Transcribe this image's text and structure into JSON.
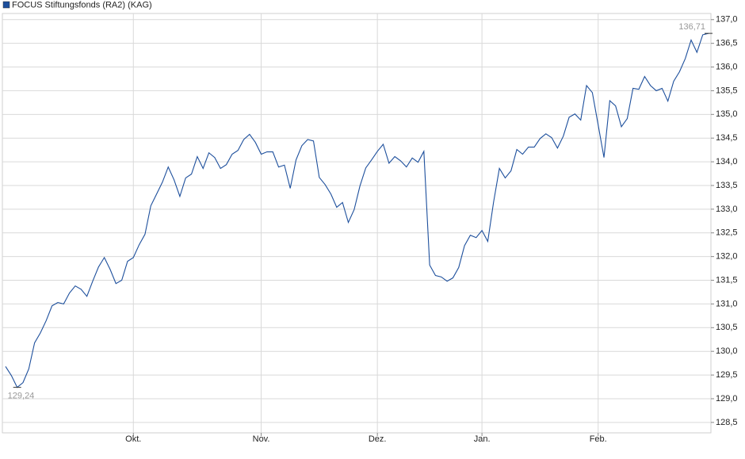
{
  "chart_data": {
    "type": "line",
    "series": [
      {
        "name": "FOCUS Stiftungsfonds (RA2) (KAG)",
        "color": "#1d4f9c",
        "values": [
          129.68,
          129.49,
          129.24,
          129.34,
          129.63,
          130.18,
          130.39,
          130.65,
          130.96,
          131.03,
          131.0,
          131.23,
          131.38,
          131.31,
          131.16,
          131.48,
          131.78,
          131.98,
          131.73,
          131.43,
          131.5,
          131.9,
          131.98,
          132.25,
          132.47,
          133.07,
          133.32,
          133.57,
          133.89,
          133.62,
          133.27,
          133.66,
          133.74,
          134.11,
          133.86,
          134.19,
          134.09,
          133.86,
          133.94,
          134.16,
          134.24,
          134.47,
          134.58,
          134.41,
          134.16,
          134.21,
          134.21,
          133.89,
          133.93,
          133.44,
          134.04,
          134.34,
          134.47,
          134.44,
          133.67,
          133.52,
          133.32,
          133.04,
          133.14,
          132.72,
          132.99,
          133.49,
          133.87,
          134.04,
          134.22,
          134.37,
          133.97,
          134.11,
          134.02,
          133.89,
          134.08,
          133.99,
          134.22,
          131.82,
          131.6,
          131.57,
          131.48,
          131.55,
          131.77,
          132.23,
          132.45,
          132.4,
          132.55,
          132.32,
          133.15,
          133.86,
          133.66,
          133.81,
          134.26,
          134.16,
          134.31,
          134.31,
          134.49,
          134.59,
          134.51,
          134.29,
          134.54,
          134.94,
          135.01,
          134.88,
          135.61,
          135.46,
          134.78,
          134.09,
          135.29,
          135.18,
          134.74,
          134.91,
          135.55,
          135.53,
          135.8,
          135.61,
          135.5,
          135.55,
          135.28,
          135.7,
          135.9,
          136.18,
          136.57,
          136.31,
          136.68,
          136.71
        ],
        "value_labels": [
          null,
          null,
          "129,24",
          null,
          null,
          null,
          null,
          null,
          null,
          null,
          null,
          null,
          null,
          null,
          null,
          null,
          null,
          null,
          null,
          null,
          null,
          null,
          null,
          null,
          null,
          null,
          null,
          null,
          null,
          null,
          null,
          null,
          null,
          null,
          null,
          null,
          null,
          null,
          null,
          null,
          null,
          null,
          null,
          null,
          null,
          null,
          null,
          null,
          null,
          null,
          null,
          null,
          null,
          null,
          null,
          null,
          null,
          null,
          null,
          null,
          null,
          null,
          null,
          null,
          null,
          null,
          null,
          null,
          null,
          null,
          null,
          null,
          null,
          null,
          null,
          null,
          null,
          null,
          null,
          null,
          null,
          null,
          null,
          null,
          null,
          null,
          null,
          null,
          null,
          null,
          null,
          null,
          null,
          null,
          null,
          null,
          null,
          null,
          null,
          null,
          null,
          null,
          null,
          null,
          null,
          null,
          null,
          null,
          null,
          null,
          null,
          null,
          null,
          null,
          null,
          null,
          null,
          null,
          null,
          null,
          null,
          "136,71"
        ]
      }
    ],
    "categories": [
      null,
      null,
      null,
      null,
      null,
      null,
      null,
      null,
      null,
      null,
      null,
      null,
      null,
      null,
      null,
      null,
      null,
      null,
      null,
      null,
      null,
      null,
      "Okt.",
      null,
      null,
      null,
      null,
      null,
      null,
      null,
      null,
      null,
      null,
      null,
      null,
      null,
      null,
      null,
      null,
      null,
      null,
      null,
      null,
      null,
      "Nov.",
      null,
      null,
      null,
      null,
      null,
      null,
      null,
      null,
      null,
      null,
      null,
      null,
      null,
      null,
      null,
      null,
      null,
      null,
      null,
      "Dez.",
      null,
      null,
      null,
      null,
      null,
      null,
      null,
      null,
      null,
      null,
      null,
      null,
      null,
      null,
      null,
      null,
      null,
      "Jan.",
      null,
      null,
      null,
      null,
      null,
      null,
      null,
      null,
      null,
      null,
      null,
      null,
      null,
      null,
      null,
      null,
      null,
      null,
      null,
      "Feb.",
      null,
      null,
      null,
      null,
      null,
      null,
      null,
      null,
      null,
      null,
      null,
      null,
      null,
      null,
      null,
      null,
      null,
      null,
      null
    ],
    "ylim": [
      128.28,
      137.13
    ],
    "yticks": [
      {
        "value": 128.5,
        "label": "128,5"
      },
      {
        "value": 129,
        "label": "129,0"
      },
      {
        "value": 129.5,
        "label": "129,5"
      },
      {
        "value": 130,
        "label": "130,0"
      },
      {
        "value": 130.5,
        "label": "130,5"
      },
      {
        "value": 131,
        "label": "131,0"
      },
      {
        "value": 131.5,
        "label": "131,5"
      },
      {
        "value": 132,
        "label": "132,0"
      },
      {
        "value": 132.5,
        "label": "132,5"
      },
      {
        "value": 133,
        "label": "133,0"
      },
      {
        "value": 133.5,
        "label": "133,5"
      },
      {
        "value": 134,
        "label": "134,0"
      },
      {
        "value": 134.5,
        "label": "134,5"
      },
      {
        "value": 135,
        "label": "135,0"
      },
      {
        "value": 135.5,
        "label": "135,5"
      },
      {
        "value": 136,
        "label": "136,0"
      },
      {
        "value": 136.5,
        "label": "136,5"
      },
      {
        "value": 137,
        "label": "137,0"
      }
    ],
    "grid": true
  }
}
